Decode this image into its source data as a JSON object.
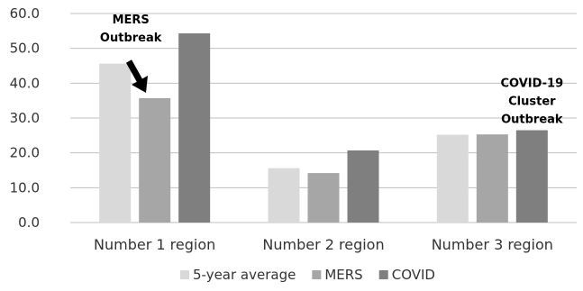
{
  "chart_data": {
    "type": "bar",
    "categories": [
      "Number 1 region",
      "Number 2 region",
      "Number 3 region"
    ],
    "series": [
      {
        "name": "5-year average",
        "values": [
          45.6,
          15.6,
          25.2
        ],
        "color": "#d9d9d9"
      },
      {
        "name": "MERS",
        "values": [
          35.7,
          14.2,
          25.3
        ],
        "color": "#a6a6a6"
      },
      {
        "name": "COVID",
        "values": [
          54.3,
          20.7,
          26.5
        ],
        "color": "#7f7f7f"
      }
    ],
    "ylim": [
      0,
      60
    ],
    "yticks": [
      "0.0",
      "10.0",
      "20.0",
      "30.0",
      "40.0",
      "50.0",
      "60.0"
    ],
    "grid": true,
    "legend": "bottom",
    "annotations": [
      {
        "lines": [
          "MERS",
          "Outbreak"
        ],
        "category": 0,
        "series": 1,
        "arrow": true
      },
      {
        "lines": [
          "COVID-19",
          "Cluster",
          "Outbreak"
        ],
        "category": 2,
        "series": 2,
        "arrow": false
      }
    ]
  }
}
